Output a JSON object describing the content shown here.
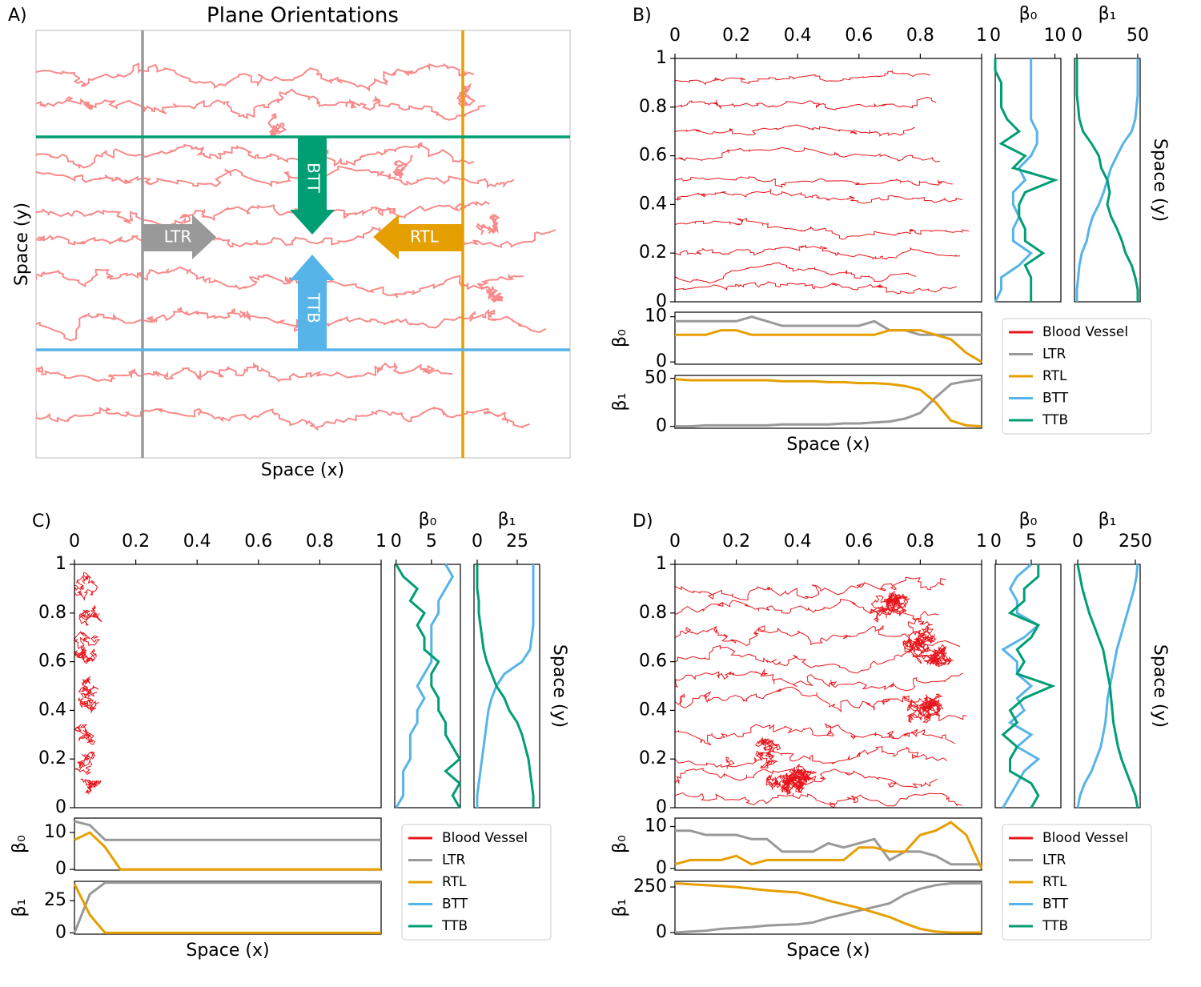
{
  "panel_a": {
    "label": "A)",
    "title": "Plane Orientations",
    "xlabel": "Space (x)",
    "ylabel": "Space (y)",
    "arrows": [
      "LTR",
      "RTL",
      "BTT",
      "TTB"
    ]
  },
  "chart_data": [
    {
      "type": "line",
      "label": "B)",
      "positions": [
        0,
        0.05,
        0.1,
        0.15,
        0.2,
        0.25,
        0.3,
        0.35,
        0.4,
        0.45,
        0.5,
        0.55,
        0.6,
        0.65,
        0.7,
        0.75,
        0.8,
        0.85,
        0.9,
        0.95,
        1
      ],
      "legend": [
        {
          "name": "Blood Vessel",
          "color": "#e8141b"
        },
        {
          "name": "LTR",
          "color": "#999999"
        },
        {
          "name": "RTL",
          "color": "#e69f00"
        },
        {
          "name": "BTT",
          "color": "#56b4e9"
        },
        {
          "name": "TTB",
          "color": "#009e73"
        }
      ],
      "vessels": {
        "xlim": [
          0,
          1
        ],
        "ylim": [
          0,
          1
        ],
        "xticks": [
          0,
          0.2,
          0.4,
          0.6,
          0.8,
          1
        ],
        "yticks": [
          0,
          0.2,
          0.4,
          0.6,
          0.8,
          1
        ]
      },
      "beta0_y": {
        "title": "β₀",
        "xlim": [
          0,
          11
        ],
        "xticks": [
          0,
          10
        ],
        "series": [
          {
            "name": "BTT",
            "color": "#56b4e9",
            "values": [
              0,
              1,
              1,
              4,
              6,
              3,
              3,
              4,
              3,
              3,
              5,
              4,
              6,
              7,
              7,
              6,
              6,
              6,
              6,
              6,
              6
            ]
          },
          {
            "name": "TTB",
            "color": "#009e73",
            "values": [
              6,
              6,
              6,
              5,
              8,
              5,
              5,
              4,
              4,
              5,
              10,
              3,
              5,
              1,
              4,
              2,
              1,
              1,
              1,
              0,
              0
            ]
          }
        ]
      },
      "beta1_y": {
        "title": "β₁",
        "ylabel": "Space (y)",
        "xlim": [
          -2,
          52
        ],
        "xticks": [
          0,
          50
        ],
        "series": [
          {
            "name": "BTT",
            "color": "#56b4e9",
            "values": [
              0,
              0,
              1,
              2,
              4,
              8,
              10,
              13,
              18,
              22,
              25,
              28,
              33,
              38,
              45,
              48,
              49,
              50,
              50,
              50,
              50
            ]
          },
          {
            "name": "TTB",
            "color": "#009e73",
            "values": [
              50,
              50,
              48,
              45,
              40,
              37,
              33,
              28,
              25,
              27,
              25,
              20,
              18,
              12,
              5,
              2,
              1,
              0,
              0,
              0,
              0
            ]
          }
        ]
      },
      "beta0_x": {
        "ylabel": "β₀",
        "ylim": [
          -0.5,
          11
        ],
        "yticks": [
          0,
          10
        ],
        "series": [
          {
            "name": "LTR",
            "color": "#999999",
            "values": [
              9,
              9,
              9,
              9,
              9,
              10,
              9,
              8,
              8,
              8,
              8,
              8,
              8,
              9,
              7,
              7,
              6,
              6,
              6,
              6,
              6
            ]
          },
          {
            "name": "RTL",
            "color": "#e69f00",
            "values": [
              6,
              6,
              6,
              7,
              7,
              6,
              6,
              6,
              6,
              6,
              6,
              6,
              6,
              6,
              7,
              7,
              7,
              6,
              5,
              2,
              0
            ]
          }
        ]
      },
      "beta1_x": {
        "ylabel": "β₁",
        "xlabel": "Space (x)",
        "ylim": [
          -2,
          53
        ],
        "yticks": [
          0,
          50
        ],
        "series": [
          {
            "name": "LTR",
            "color": "#999999",
            "values": [
              0,
              0,
              1,
              1,
              1,
              1,
              1,
              2,
              2,
              2,
              2,
              3,
              3,
              4,
              5,
              8,
              14,
              30,
              44,
              47,
              49
            ]
          },
          {
            "name": "RTL",
            "color": "#e69f00",
            "values": [
              49,
              48,
              48,
              48,
              48,
              48,
              48,
              47,
              47,
              47,
              46,
              46,
              45,
              45,
              44,
              42,
              38,
              25,
              6,
              1,
              0
            ]
          }
        ]
      }
    },
    {
      "type": "line",
      "label": "C)",
      "positions": [
        0,
        0.05,
        0.1,
        0.15,
        0.2,
        0.25,
        0.3,
        0.35,
        0.4,
        0.45,
        0.5,
        0.55,
        0.6,
        0.65,
        0.7,
        0.75,
        0.8,
        0.85,
        0.9,
        0.95,
        1
      ],
      "legend": [
        {
          "name": "Blood Vessel",
          "color": "#e8141b"
        },
        {
          "name": "LTR",
          "color": "#999999"
        },
        {
          "name": "RTL",
          "color": "#e69f00"
        },
        {
          "name": "BTT",
          "color": "#56b4e9"
        },
        {
          "name": "TTB",
          "color": "#009e73"
        }
      ],
      "vessels": {
        "xlim": [
          0,
          1
        ],
        "ylim": [
          0,
          1
        ],
        "xticks": [
          0,
          0.2,
          0.4,
          0.6,
          0.8,
          1
        ],
        "yticks": [
          0,
          0.2,
          0.4,
          0.6,
          0.8,
          1
        ]
      },
      "beta0_y": {
        "title": "β₀",
        "xlim": [
          -0.2,
          9.1
        ],
        "xticks": [
          0,
          5
        ],
        "series": [
          {
            "name": "BTT",
            "color": "#56b4e9",
            "values": [
              0,
              1,
              1,
              1,
              2,
              2,
              2,
              3,
              3,
              4,
              3,
              4,
              5,
              5,
              5,
              5,
              6,
              6,
              7,
              8,
              7
            ]
          },
          {
            "name": "TTB",
            "color": "#009e73",
            "values": [
              9,
              8,
              9,
              7,
              9,
              8,
              7,
              7,
              6,
              6,
              5,
              5,
              6,
              4,
              4,
              3,
              4,
              2,
              3,
              1,
              0
            ]
          }
        ]
      },
      "beta1_y": {
        "title": "β₁",
        "ylabel": "Space (y)",
        "xlim": [
          -2,
          39
        ],
        "xticks": [
          0,
          25
        ],
        "series": [
          {
            "name": "BTT",
            "color": "#56b4e9",
            "values": [
              0,
              0,
              1,
              2,
              3,
              4,
              5,
              6,
              7,
              9,
              12,
              17,
              28,
              33,
              34,
              35,
              35,
              35,
              35,
              35,
              35
            ]
          },
          {
            "name": "TTB",
            "color": "#009e73",
            "values": [
              35,
              35,
              34,
              33,
              32,
              30,
              28,
              25,
              20,
              17,
              12,
              9,
              6,
              4,
              3,
              2,
              1,
              1,
              0,
              0,
              0
            ]
          }
        ]
      },
      "beta0_x": {
        "ylabel": "β₀",
        "ylim": [
          -0.2,
          13.9
        ],
        "yticks": [
          0,
          10
        ],
        "series": [
          {
            "name": "LTR",
            "color": "#999999",
            "values": [
              13,
              12,
              8,
              8,
              8,
              8,
              8,
              8,
              8,
              8,
              8,
              8,
              8,
              8,
              8,
              8,
              8,
              8,
              8,
              8,
              8
            ]
          },
          {
            "name": "RTL",
            "color": "#e69f00",
            "values": [
              8,
              10,
              6,
              0,
              0,
              0,
              0,
              0,
              0,
              0,
              0,
              0,
              0,
              0,
              0,
              0,
              0,
              0,
              0,
              0,
              0
            ]
          }
        ]
      },
      "beta1_x": {
        "ylabel": "β₁",
        "xlabel": "Space (x)",
        "ylim": [
          -1,
          40
        ],
        "yticks": [
          0,
          25
        ],
        "series": [
          {
            "name": "LTR",
            "color": "#999999",
            "values": [
              0,
              30,
              39,
              39,
              39,
              39,
              39,
              39,
              39,
              39,
              39,
              39,
              39,
              39,
              39,
              39,
              39,
              39,
              39,
              39,
              39
            ]
          },
          {
            "name": "RTL",
            "color": "#e69f00",
            "values": [
              38,
              14,
              0,
              0,
              0,
              0,
              0,
              0,
              0,
              0,
              0,
              0,
              0,
              0,
              0,
              0,
              0,
              0,
              0,
              0,
              0
            ]
          }
        ]
      }
    },
    {
      "type": "line",
      "label": "D)",
      "positions": [
        0,
        0.05,
        0.1,
        0.15,
        0.2,
        0.25,
        0.3,
        0.35,
        0.4,
        0.45,
        0.5,
        0.55,
        0.6,
        0.65,
        0.7,
        0.75,
        0.8,
        0.85,
        0.9,
        0.95,
        1
      ],
      "legend": [
        {
          "name": "Blood Vessel",
          "color": "#e8141b"
        },
        {
          "name": "LTR",
          "color": "#999999"
        },
        {
          "name": "RTL",
          "color": "#e69f00"
        },
        {
          "name": "BTT",
          "color": "#56b4e9"
        },
        {
          "name": "TTB",
          "color": "#009e73"
        }
      ],
      "vessels": {
        "xlim": [
          0,
          1
        ],
        "ylim": [
          0,
          1
        ],
        "xticks": [
          0,
          0.2,
          0.4,
          0.6,
          0.8,
          1
        ],
        "yticks": [
          0,
          0.2,
          0.4,
          0.6,
          0.8,
          1
        ]
      },
      "beta0_y": {
        "title": "β₀",
        "xlim": [
          -0.1,
          9.2
        ],
        "xticks": [
          0,
          5
        ],
        "series": [
          {
            "name": "BTT",
            "color": "#56b4e9",
            "values": [
              1,
              2,
              3,
              4,
              6,
              3,
              5,
              2,
              4,
              3,
              5,
              3,
              3,
              1,
              4,
              6,
              3,
              3,
              2,
              3,
              5
            ]
          },
          {
            "name": "TTB",
            "color": "#009e73",
            "values": [
              5,
              6,
              5,
              2,
              2,
              3,
              1,
              3,
              2,
              4,
              8,
              3,
              4,
              3,
              5,
              6,
              2,
              4,
              4,
              6,
              6
            ]
          }
        ]
      },
      "beta1_y": {
        "title": "β₁",
        "ylabel": "Space (y)",
        "xlim": [
          -14,
          271
        ],
        "xticks": [
          0,
          250
        ],
        "series": [
          {
            "name": "BTT",
            "color": "#56b4e9",
            "values": [
              0,
              10,
              30,
              60,
              80,
              100,
              110,
              120,
              125,
              130,
              140,
              150,
              160,
              170,
              185,
              200,
              215,
              230,
              245,
              255,
              260
            ]
          },
          {
            "name": "TTB",
            "color": "#009e73",
            "values": [
              260,
              250,
              230,
              210,
              190,
              175,
              165,
              155,
              150,
              145,
              140,
              130,
              120,
              110,
              90,
              70,
              50,
              35,
              20,
              10,
              0
            ]
          }
        ]
      },
      "beta0_x": {
        "ylabel": "β₀",
        "ylim": [
          -0.4,
          12
        ],
        "yticks": [
          0,
          10
        ],
        "series": [
          {
            "name": "LTR",
            "color": "#999999",
            "values": [
              9,
              9,
              8,
              8,
              8,
              7,
              7,
              4,
              4,
              4,
              6,
              5,
              6,
              7,
              2,
              4,
              4,
              3,
              1,
              1,
              1
            ]
          },
          {
            "name": "RTL",
            "color": "#e69f00",
            "values": [
              1,
              2,
              2,
              2,
              3,
              1,
              2,
              2,
              2,
              2,
              2,
              2,
              5,
              5,
              4,
              4,
              8,
              9,
              11,
              8,
              0
            ]
          }
        ]
      },
      "beta1_x": {
        "ylabel": "β₁",
        "xlabel": "Space (x)",
        "ylim": [
          -9,
          281
        ],
        "yticks": [
          0,
          250
        ],
        "series": [
          {
            "name": "LTR",
            "color": "#999999",
            "values": [
              0,
              5,
              10,
              20,
              25,
              30,
              38,
              42,
              45,
              55,
              80,
              100,
              120,
              140,
              160,
              210,
              240,
              260,
              270,
              270,
              270
            ]
          },
          {
            "name": "RTL",
            "color": "#e69f00",
            "values": [
              270,
              265,
              260,
              255,
              250,
              240,
              232,
              225,
              220,
              200,
              175,
              155,
              135,
              110,
              85,
              50,
              20,
              5,
              0,
              0,
              0
            ]
          }
        ]
      }
    }
  ]
}
